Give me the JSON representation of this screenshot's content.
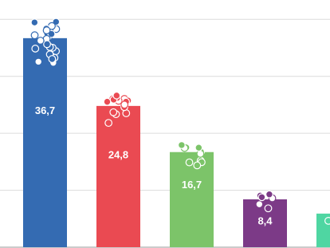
{
  "chart_data": {
    "type": "bar",
    "categories": [
      null,
      null,
      null,
      null,
      null
    ],
    "series": [
      {
        "values": [
          36.7,
          24.8,
          16.7,
          8.4,
          5.9
        ],
        "value_labels": [
          "36,7",
          "24,8",
          "16,7",
          "8,4",
          null
        ]
      }
    ],
    "colors": [
      "#346bb2",
      "#ea4a52",
      "#7cc469",
      "#7c3a87",
      "#4fd6a2"
    ],
    "ylim": [
      0,
      43.4
    ],
    "yticks": [
      0,
      10,
      20,
      30,
      40
    ],
    "grid": true,
    "tick_labels": false
  }
}
